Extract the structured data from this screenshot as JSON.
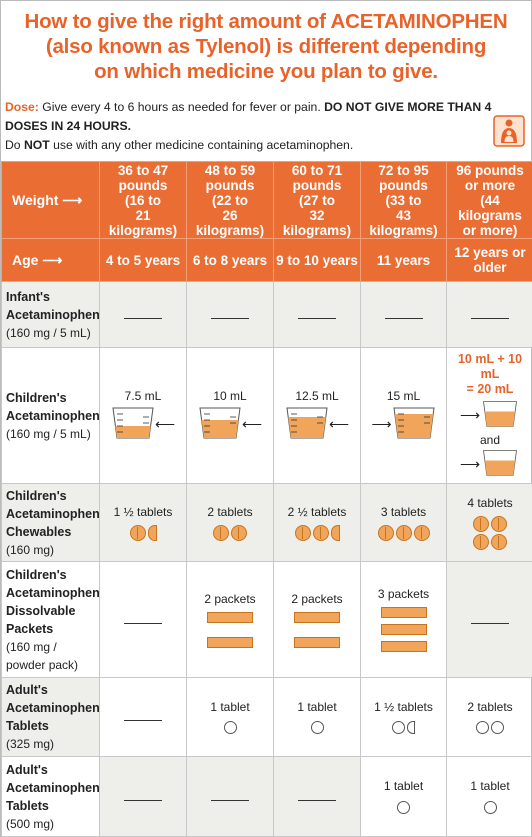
{
  "title": {
    "line1": "How to give the right amount of ACETAMINOPHEN",
    "line2": "(also known as Tylenol) is different depending",
    "line3": "on which medicine you plan to give."
  },
  "dose": {
    "label": "Dose:",
    "text1": " Give every 4 to 6 hours as needed for fever or pain. ",
    "bold1": "DO NOT GIVE MORE THAN 4 DOSES IN 24 HOURS.",
    "text2": "Do ",
    "bold2": "NOT",
    "text3": " use with any other medicine containing acetaminophen."
  },
  "header": {
    "weight_label": "Weight",
    "age_label": "Age",
    "weights": [
      {
        "l1": "36 to 47",
        "l2": "pounds",
        "l3": "(16 to",
        "l4": "21 kilograms)"
      },
      {
        "l1": "48 to 59",
        "l2": "pounds",
        "l3": "(22 to",
        "l4": "26 kilograms)"
      },
      {
        "l1": "60 to 71",
        "l2": "pounds",
        "l3": "(27 to",
        "l4": "32 kilograms)"
      },
      {
        "l1": "72 to 95",
        "l2": "pounds",
        "l3": "(33 to",
        "l4": "43 kilograms)"
      },
      {
        "l1": "96 pounds",
        "l2": "or more",
        "l3": "(44 kilograms",
        "l4": "or more)"
      }
    ],
    "ages": [
      "4 to 5 years",
      "6 to 8 years",
      "9 to 10 years",
      "11 years",
      "12 years or older"
    ]
  },
  "rows": {
    "infant": {
      "l1": "Infant's",
      "l2": "Acetaminophen",
      "l3": "(160 mg / 5 mL)"
    },
    "children": {
      "l1": "Children's",
      "l2": "Acetaminophen",
      "l3": "(160 mg / 5 mL)",
      "doses": [
        "7.5 mL",
        "10 mL",
        "12.5 mL",
        "15 mL"
      ],
      "last_line1": "10 mL + 10 mL",
      "last_line2": "= 20 mL",
      "and": "and"
    },
    "chewables": {
      "l1": "Children's",
      "l2": "Acetaminophen",
      "l3": "Chewables",
      "l4": "(160 mg)",
      "doses": [
        "1 ½ tablets",
        "2 tablets",
        "2 ½ tablets",
        "3 tablets",
        "4 tablets"
      ]
    },
    "packets": {
      "l1": "Children's",
      "l2": "Acetaminophen",
      "l3": "Dissolvable",
      "l4": "Packets",
      "l5": "(160 mg /",
      "l6": "powder pack)",
      "doses": [
        "2 packets",
        "2 packets",
        "3 packets"
      ]
    },
    "adult325": {
      "l1": "Adult's",
      "l2": "Acetaminophen",
      "l3": "Tablets",
      "l4": "(325 mg)",
      "doses": [
        "1 tablet",
        "1 tablet",
        "1 ½ tablets",
        "2 tablets"
      ]
    },
    "adult500": {
      "l1": "Adult's",
      "l2": "Acetaminophen",
      "l3": "Tablets",
      "l4": "(500 mg)",
      "doses": [
        "1 tablet",
        "1 tablet"
      ]
    }
  },
  "cup_marks": {
    "m15": "15mL",
    "m125": "12.5mL",
    "m10": "10mL",
    "m75": "7.5mL",
    "m5": "5mL"
  },
  "colors": {
    "accent": "#e8622a",
    "header_bg": "#ea6d33",
    "pill": "#f0a55a",
    "gray_cell": "#eeeeea"
  }
}
